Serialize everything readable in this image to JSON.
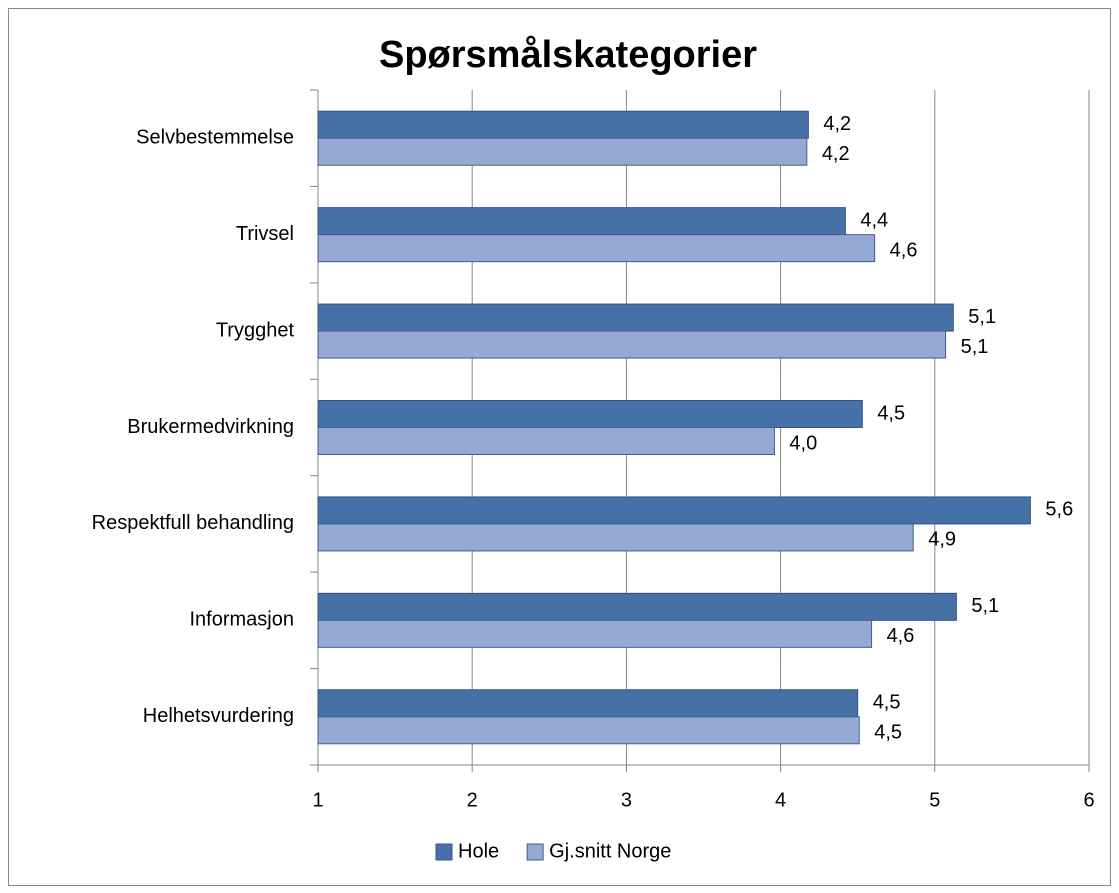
{
  "chart_data": {
    "type": "bar",
    "orientation": "horizontal",
    "title": "Spørsmålskategorier",
    "categories": [
      "Selvbestemmelse",
      "Trivsel",
      "Trygghet",
      "Brukermedvirkning",
      "Respektfull behandling",
      "Informasjon",
      "Helhetsvurdering"
    ],
    "series": [
      {
        "name": "Hole",
        "color": "#4671a6",
        "values": [
          4.18,
          4.42,
          5.12,
          4.53,
          5.62,
          5.14,
          4.5
        ],
        "value_labels": [
          "4,2",
          "4,4",
          "5,1",
          "4,5",
          "5,6",
          "5,1",
          "4,5"
        ]
      },
      {
        "name": "Gj.snitt Norge",
        "color": "#95a9d3",
        "values": [
          4.17,
          4.61,
          5.07,
          3.96,
          4.86,
          4.59,
          4.51
        ],
        "value_labels": [
          "4,2",
          "4,6",
          "5,1",
          "4,0",
          "4,9",
          "4,6",
          "4,5"
        ]
      }
    ],
    "xlim": [
      1,
      6
    ],
    "xticks": [
      1,
      2,
      3,
      4,
      5,
      6
    ],
    "grid": true,
    "legend": "bottom"
  }
}
